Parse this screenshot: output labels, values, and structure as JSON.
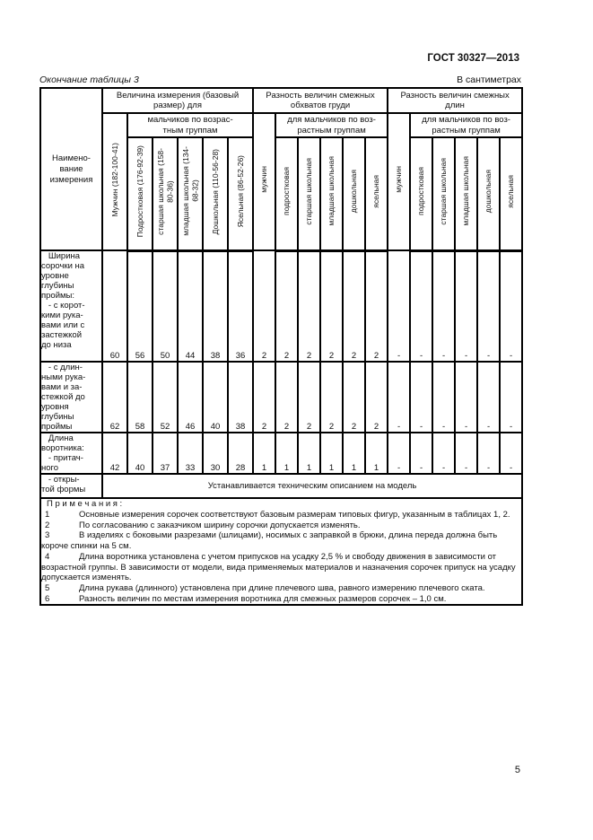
{
  "page": {
    "doc_number": "ГОСТ 30327—2013",
    "table_caption": "Окончание таблицы 3",
    "units_label": "В сантиметрах",
    "page_number": "5"
  },
  "table": {
    "row_header": "Наимено-\nвание\nизмерения",
    "groups": [
      {
        "title": "Величина измерения (базовый\nразмер) для",
        "first_col": "Мужчин (182-100-41)",
        "subgroup_title": "мальчиков по возрас-\nтным группам",
        "cols": [
          "Подростковая (176-92-39)",
          "старшая школьная (158-\n80-36)",
          "младшая школьная (134-\n68-32)",
          "Дошкольная (110-56-28)",
          "Ясельная (86-52-26)"
        ]
      },
      {
        "title": "Разность величин смежных\nобхватов груди",
        "first_col": "мужчин",
        "subgroup_title": "для мальчиков по воз-\nрастным группам",
        "cols": [
          "подростковая",
          "старшая школьная",
          "младшая школьная",
          "дошкольная",
          "ясельная"
        ]
      },
      {
        "title": "Разность величин смежных\nдлин",
        "first_col": "мужчин",
        "subgroup_title": "для мальчиков по воз-\nрастным группам",
        "cols": [
          "подростковая",
          "старшая школьная",
          "младшая школьная",
          "дошкольная",
          "ясельная"
        ]
      }
    ],
    "rows": [
      {
        "label": "   Ширина\nсорочки на\nуровне\nглубины\nпроймы:\n   - с корот-\nкими рука-\nвами или с\nзастежкой\nдо низа",
        "values": [
          "60",
          "56",
          "50",
          "44",
          "38",
          "36",
          "2",
          "2",
          "2",
          "2",
          "2",
          "2",
          "-",
          "-",
          "-",
          "-",
          "-",
          "-"
        ]
      },
      {
        "label": "   - с длин-\nными рука-\nвами и за-\nстежкой до\nуровня\nглубины\nпроймы",
        "values": [
          "62",
          "58",
          "52",
          "46",
          "40",
          "38",
          "2",
          "2",
          "2",
          "2",
          "2",
          "2",
          "-",
          "-",
          "-",
          "-",
          "-",
          "-"
        ]
      },
      {
        "label": "   Длина\nворотника:\n   - притач-\nного",
        "values": [
          "42",
          "40",
          "37",
          "33",
          "30",
          "28",
          "1",
          "1",
          "1",
          "1",
          "1",
          "1",
          "-",
          "-",
          "-",
          "-",
          "-",
          "-"
        ]
      },
      {
        "label": "   - откры-\nтой формы",
        "merged": "Устанавливается техническим описанием на модель"
      }
    ],
    "notes_title": "П р и м е ч а н и я :",
    "notes": [
      {
        "num": "1",
        "text": "Основные измерения сорочек соответствуют базовым размерам типовых фигур, указанным в таблицах 1, 2."
      },
      {
        "num": "2",
        "text": "По согласованию с заказчиком ширину сорочки допускается изменять."
      },
      {
        "num": "3",
        "text": "В изделиях с боковыми разрезами (шлицами), носимых с заправкой в брюки, длина переда должна быть короче спинки на 5 см."
      },
      {
        "num": "4",
        "text": "Длина воротника установлена с учетом припусков на усадку 2,5 % и свободу движения в зависимости от возрастной группы. В зависимости от модели, вида применяемых материалов и назначения сорочек припуск на усадку допускается изменять."
      },
      {
        "num": "5",
        "text": "Длина рукава (длинного) установлена при длине плечевого шва, равного измерению плечевого ската."
      },
      {
        "num": "6",
        "text": "Разность величин по местам измерения воротника для смежных размеров сорочек – 1,0 см."
      }
    ]
  }
}
